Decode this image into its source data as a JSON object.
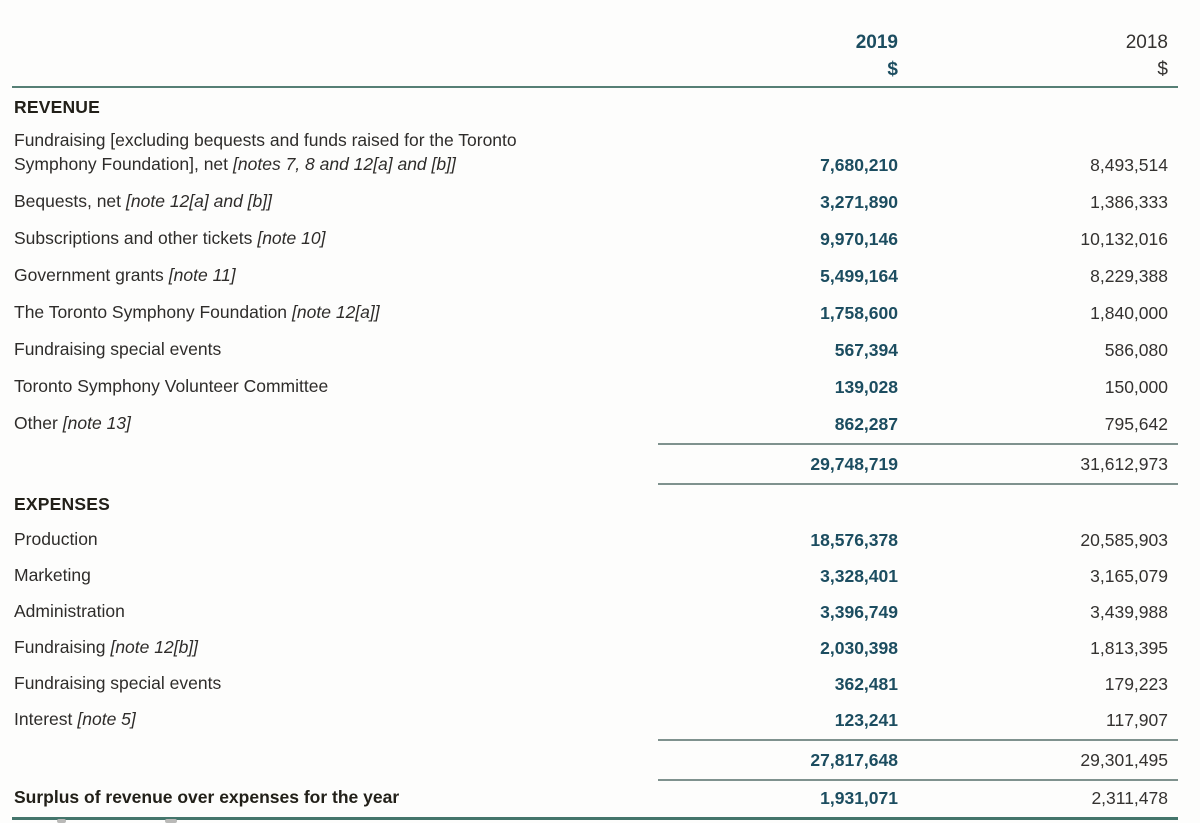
{
  "header": {
    "col_2019": "2019",
    "col_2018": "2018",
    "currency_2019": "$",
    "currency_2018": "$"
  },
  "sections": [
    {
      "heading": "REVENUE",
      "rows": [
        {
          "label": "Fundraising [excluding bequests and funds raised for the Toronto Symphony Foundation], net",
          "note": "[notes 7, 8 and 12[a] and [b]]",
          "v2019": "7,680,210",
          "v2018": "8,493,514"
        },
        {
          "label": "Bequests, net",
          "note": "[note 12[a] and [b]]",
          "v2019": "3,271,890",
          "v2018": "1,386,333"
        },
        {
          "label": "Subscriptions and other tickets",
          "note": "[note 10]",
          "v2019": "9,970,146",
          "v2018": "10,132,016"
        },
        {
          "label": "Government grants",
          "note": "[note 11]",
          "v2019": "5,499,164",
          "v2018": "8,229,388"
        },
        {
          "label": "The Toronto Symphony Foundation",
          "note": "[note 12[a]]",
          "v2019": "1,758,600",
          "v2018": "1,840,000"
        },
        {
          "label": "Fundraising special events",
          "note": "",
          "v2019": "567,394",
          "v2018": "586,080"
        },
        {
          "label": "Toronto Symphony Volunteer Committee",
          "note": "",
          "v2019": "139,028",
          "v2018": "150,000"
        },
        {
          "label": "Other",
          "note": "[note 13]",
          "v2019": "862,287",
          "v2018": "795,642"
        }
      ],
      "total_2019": "29,748,719",
      "total_2018": "31,612,973"
    },
    {
      "heading": "EXPENSES",
      "rows": [
        {
          "label": "Production",
          "note": "",
          "v2019": "18,576,378",
          "v2018": "20,585,903"
        },
        {
          "label": "Marketing",
          "note": "",
          "v2019": "3,328,401",
          "v2018": "3,165,079"
        },
        {
          "label": "Administration",
          "note": "",
          "v2019": "3,396,749",
          "v2018": "3,439,988"
        },
        {
          "label": "Fundraising",
          "note": "[note 12[b]]",
          "v2019": "2,030,398",
          "v2018": "1,813,395"
        },
        {
          "label": "Fundraising special events",
          "note": "",
          "v2019": "362,481",
          "v2018": "179,223"
        },
        {
          "label": "Interest",
          "note": "[note 5]",
          "v2019": "123,241",
          "v2018": "117,907"
        }
      ],
      "total_2019": "27,817,648",
      "total_2018": "29,301,495"
    }
  ],
  "surplus": {
    "label": "Surplus of revenue over expenses for the year",
    "v2019": "1,931,071",
    "v2018": "2,311,478"
  },
  "colors": {
    "accent_teal_text": "#1c4d60",
    "rule_teal": "#567f75",
    "rule_bottom_teal": "#44756b",
    "rule_gray": "#7f928e",
    "body_text": "#2e2c2a"
  }
}
